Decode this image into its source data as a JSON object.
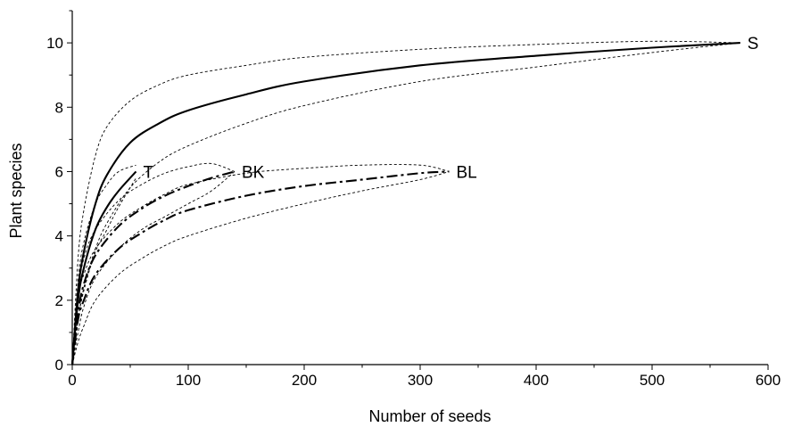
{
  "chart_data": {
    "type": "line",
    "title": "",
    "xlabel": "Number of seeds",
    "ylabel": "Plant species",
    "xlim": [
      0,
      600
    ],
    "ylim": [
      0,
      11
    ],
    "xticks": [
      0,
      100,
      200,
      300,
      400,
      500,
      600
    ],
    "yticks": [
      0,
      2,
      4,
      6,
      8,
      10
    ],
    "grid": false,
    "legend": "none",
    "series": [
      {
        "name": "S",
        "style": "solid",
        "x": [
          0,
          5,
          10,
          20,
          30,
          50,
          75,
          100,
          150,
          200,
          300,
          400,
          500,
          576
        ],
        "y": [
          0,
          2.3,
          3.5,
          5.0,
          5.9,
          6.9,
          7.5,
          7.9,
          8.4,
          8.8,
          9.3,
          9.6,
          9.85,
          10
        ],
        "ci_upper": [
          0,
          3.3,
          4.8,
          6.5,
          7.4,
          8.2,
          8.7,
          9.0,
          9.3,
          9.55,
          9.8,
          9.95,
          10.05,
          10
        ],
        "ci_lower": [
          0,
          1.4,
          2.4,
          3.6,
          4.4,
          5.5,
          6.3,
          6.8,
          7.5,
          8.05,
          8.8,
          9.25,
          9.7,
          10
        ]
      },
      {
        "name": "T",
        "style": "solid",
        "x": [
          0,
          5,
          10,
          20,
          30,
          40,
          55
        ],
        "y": [
          0,
          2.0,
          3.0,
          4.2,
          4.9,
          5.4,
          6.0
        ],
        "ci_upper": [
          0,
          2.6,
          3.8,
          5.0,
          5.6,
          6.0,
          6.2
        ],
        "ci_lower": [
          0,
          1.4,
          2.3,
          3.5,
          4.2,
          4.9,
          5.8
        ]
      },
      {
        "name": "BK",
        "style": "dashdot",
        "x": [
          0,
          5,
          10,
          20,
          40,
          60,
          80,
          100,
          120,
          140
        ],
        "y": [
          0,
          1.6,
          2.5,
          3.4,
          4.3,
          4.85,
          5.25,
          5.55,
          5.8,
          6.0
        ],
        "ci_upper": [
          0,
          2.2,
          3.3,
          4.2,
          5.1,
          5.6,
          5.95,
          6.15,
          6.25,
          6.0
        ],
        "ci_lower": [
          0,
          1.0,
          1.8,
          2.7,
          3.6,
          4.2,
          4.6,
          5.0,
          5.4,
          6.0
        ]
      },
      {
        "name": "BL",
        "style": "dashdot",
        "x": [
          0,
          5,
          10,
          20,
          40,
          60,
          80,
          100,
          150,
          200,
          250,
          300,
          325
        ],
        "y": [
          0,
          1.4,
          2.0,
          2.8,
          3.6,
          4.1,
          4.5,
          4.8,
          5.25,
          5.55,
          5.75,
          5.95,
          6.0
        ],
        "ci_upper": [
          0,
          2.1,
          2.8,
          3.6,
          4.4,
          4.9,
          5.3,
          5.6,
          5.95,
          6.1,
          6.2,
          6.2,
          6.0
        ],
        "ci_lower": [
          0,
          0.7,
          1.2,
          2.0,
          2.8,
          3.3,
          3.7,
          4.0,
          4.55,
          5.0,
          5.4,
          5.75,
          6.0
        ]
      }
    ]
  }
}
